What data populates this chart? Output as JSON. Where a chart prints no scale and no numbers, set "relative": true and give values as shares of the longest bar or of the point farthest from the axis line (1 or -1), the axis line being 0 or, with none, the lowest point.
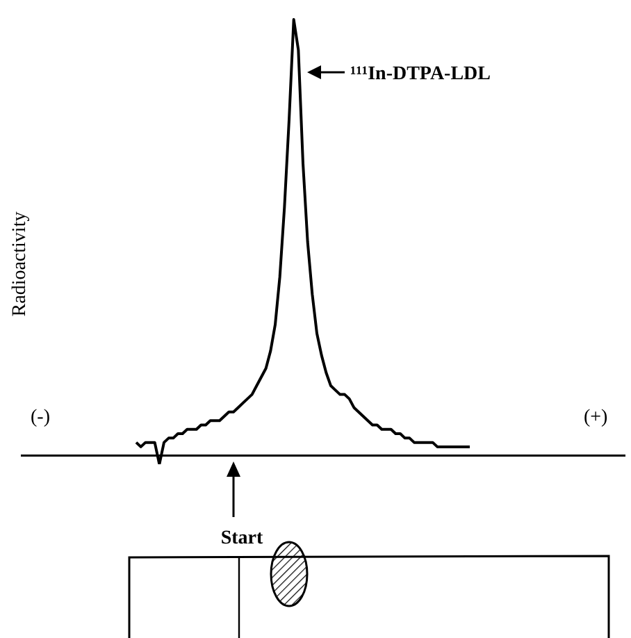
{
  "chart_data": {
    "type": "line",
    "relative": true,
    "annotations": [
      "¹¹¹In-DTPA-LDL",
      "(-)",
      "(+)",
      "Start",
      "Radioactivity"
    ],
    "categories": [
      null,
      null,
      null,
      null,
      null,
      null,
      null,
      null,
      null,
      null,
      null,
      null,
      null,
      null,
      null,
      null,
      null,
      null,
      null,
      null,
      null,
      null,
      null,
      null,
      null,
      null,
      null,
      null,
      null,
      null,
      null,
      null,
      null,
      null,
      null,
      null,
      null,
      null,
      null,
      null,
      null,
      null,
      null,
      null,
      null,
      null,
      null,
      null,
      null,
      null,
      null,
      null,
      null,
      null,
      null,
      null,
      null,
      null,
      null,
      null,
      null,
      null,
      null,
      null,
      null,
      null,
      null,
      null,
      null,
      null,
      null,
      null,
      null
    ],
    "series": [
      {
        "color": "#000000",
        "values": [
          0.03,
          0.02,
          0.03,
          0.03,
          0.03,
          -0.02,
          0.03,
          0.04,
          0.04,
          0.05,
          0.05,
          0.06,
          0.06,
          0.06,
          0.07,
          0.07,
          0.08,
          0.08,
          0.08,
          0.09,
          0.1,
          0.1,
          0.11,
          0.12,
          0.13,
          0.14,
          0.16,
          0.18,
          0.2,
          0.24,
          0.3,
          0.41,
          0.57,
          0.77,
          1,
          0.93,
          0.67,
          0.49,
          0.37,
          0.28,
          0.23,
          0.19,
          0.16,
          0.15,
          0.14,
          0.14,
          0.13,
          0.11,
          0.1,
          0.09,
          0.08,
          0.07,
          0.07,
          0.06,
          0.06,
          0.06,
          0.05,
          0.05,
          0.04,
          0.04,
          0.03,
          0.03,
          0.03,
          0.03,
          0.03,
          0.02,
          0.02,
          0.02,
          0.02,
          0.02,
          0.02,
          0.02,
          0.02
        ]
      }
    ]
  }
}
